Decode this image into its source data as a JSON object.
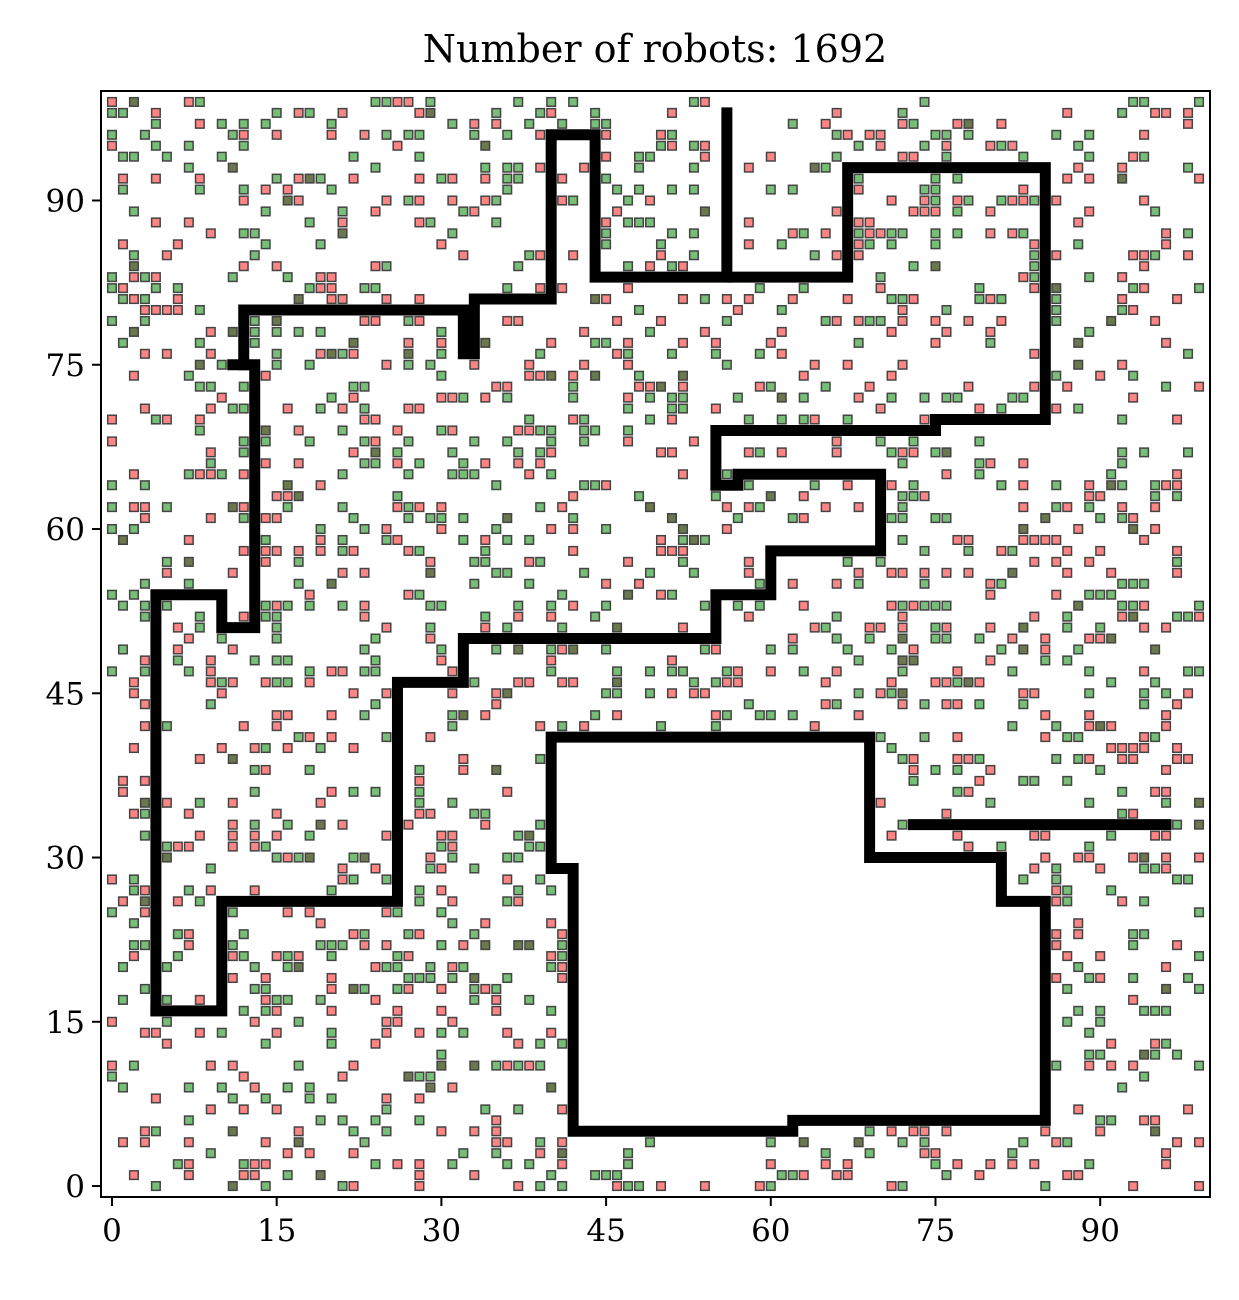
{
  "chart_data": {
    "type": "scatter",
    "title": "Number of robots: 1692",
    "xlabel": "",
    "ylabel": "",
    "xlim": [
      -1,
      100
    ],
    "ylim": [
      -1,
      100
    ],
    "xticks": [
      0,
      15,
      30,
      45,
      60,
      75,
      90
    ],
    "yticks": [
      0,
      15,
      30,
      45,
      60,
      75,
      90
    ],
    "grid": false,
    "robot_count": 1692,
    "colors": {
      "red_robot": "#ff5c5c",
      "green_robot": "#4aa84a",
      "dark_robot": "#3a4a10",
      "robot_edge": "#444444",
      "obstacle_boundary": "#000000"
    },
    "obstacle_boundaries": [
      [
        [
          4,
          16
        ],
        [
          4,
          54
        ],
        [
          10,
          54
        ],
        [
          10,
          51
        ],
        [
          13,
          51
        ],
        [
          13,
          75
        ],
        [
          12,
          75
        ],
        [
          12,
          80
        ],
        [
          32,
          80
        ],
        [
          32,
          76
        ],
        [
          33,
          76
        ],
        [
          33,
          81
        ],
        [
          40,
          81
        ],
        [
          40,
          96
        ],
        [
          44,
          96
        ],
        [
          44,
          83
        ],
        [
          56,
          83
        ],
        [
          56,
          98
        ]
      ],
      [
        [
          56.5,
          83
        ],
        [
          67,
          83
        ],
        [
          67,
          93
        ],
        [
          85,
          93
        ],
        [
          85,
          70
        ],
        [
          75,
          70
        ],
        [
          75,
          69
        ],
        [
          55,
          69
        ],
        [
          55,
          64
        ],
        [
          57,
          64
        ],
        [
          57,
          65
        ],
        [
          70,
          65
        ],
        [
          70,
          58
        ],
        [
          60,
          58
        ],
        [
          60,
          54
        ],
        [
          55,
          54
        ],
        [
          55,
          50
        ],
        [
          32,
          50
        ],
        [
          32,
          46
        ],
        [
          26,
          46
        ],
        [
          26,
          26
        ],
        [
          10,
          26
        ],
        [
          10,
          16
        ],
        [
          4,
          16
        ]
      ],
      [
        [
          11,
          75
        ],
        [
          12,
          75
        ]
      ],
      [
        [
          40,
          41
        ],
        [
          69,
          41
        ],
        [
          69,
          30
        ],
        [
          81,
          30
        ],
        [
          81,
          26
        ],
        [
          85,
          26
        ],
        [
          85,
          6
        ],
        [
          62,
          6
        ],
        [
          62,
          5
        ],
        [
          42,
          5
        ],
        [
          42,
          29
        ],
        [
          40,
          29
        ],
        [
          40,
          41
        ]
      ],
      [
        [
          73,
          33
        ],
        [
          96,
          33
        ]
      ]
    ]
  }
}
